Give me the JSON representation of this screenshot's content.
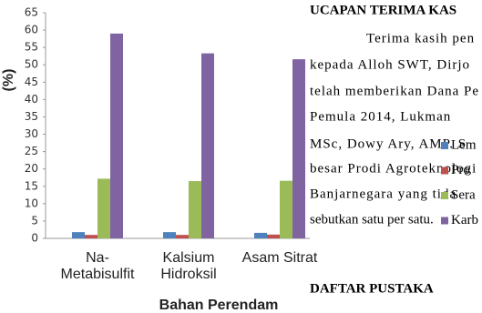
{
  "chart_data": {
    "type": "bar",
    "y_label": "(%)",
    "x_label": "Bahan Perendam",
    "categories": [
      "Na-\nMetabisulfit",
      "Kalsium\nHidroksil",
      "Asam Sitrat"
    ],
    "series": [
      {
        "name": "Lem",
        "color": "#4f81bd",
        "values": [
          1.8,
          1.8,
          1.6
        ]
      },
      {
        "name": "Pro",
        "color": "#c0504d",
        "values": [
          1.0,
          1.0,
          1.1
        ]
      },
      {
        "name": "Sera",
        "color": "#9bbb59",
        "values": [
          17.2,
          16.5,
          16.6
        ]
      },
      {
        "name": "Karb",
        "color": "#8064a2",
        "values": [
          59.0,
          53.3,
          51.6
        ]
      }
    ],
    "ylim": [
      0,
      65
    ],
    "yticks": [
      0,
      5,
      10,
      15,
      20,
      25,
      30,
      35,
      40,
      45,
      50,
      55,
      60,
      65
    ],
    "grid": false
  },
  "document": {
    "heading": "UCAPAN TERIMA KAS",
    "lines": [
      "Terima kasih pen",
      "kepada Alloh SWT, Dirjo",
      "telah memberikan Dana Pe",
      "Pemula 2014, Lukman",
      "MSc, Dowy Ary, AMP. S",
      "besar Prodi Agroteknologi",
      "Banjarnegara yang tida",
      "sebutkan satu per satu."
    ],
    "heading2": "DAFTAR PUSTAKA"
  }
}
